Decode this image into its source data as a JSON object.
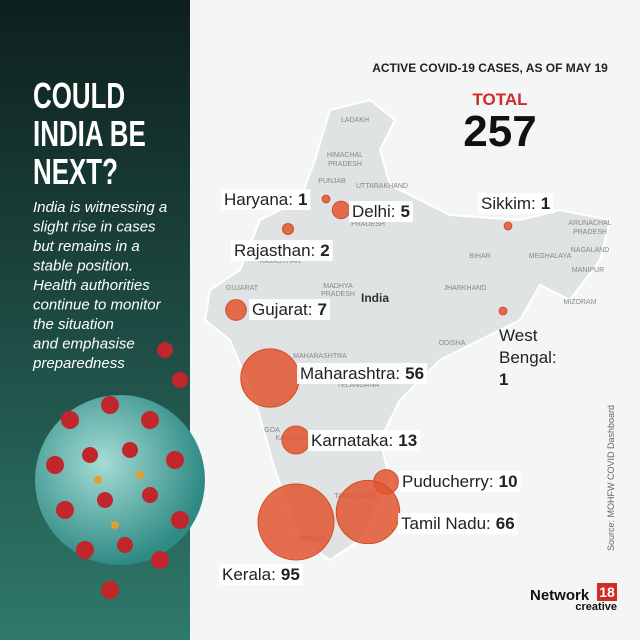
{
  "header": {
    "title_lines": [
      "COULD",
      "INDIA BE",
      "NEXT?"
    ],
    "description_lines": [
      "India is witnessing a",
      "slight rise in cases",
      "but remains in a",
      "stable position.",
      "Health authorities",
      "continue to monitor",
      "the situation",
      "and emphasise",
      "preparedness"
    ],
    "subtitle": "ACTIVE COVID-19 CASES, AS OF MAY 19",
    "total_label": "TOTAL",
    "total": 257
  },
  "states": [
    {
      "label": "Haryana:",
      "value": 1
    },
    {
      "label": "Delhi:",
      "value": 5
    },
    {
      "label": "Rajasthan:",
      "value": 2
    },
    {
      "label": "Gujarat:",
      "value": 7
    },
    {
      "label": "Maharashtra:",
      "value": 56
    },
    {
      "label": "Karnataka:",
      "value": 13
    },
    {
      "label": "Puducherry:",
      "value": 10
    },
    {
      "label": "Tamil Nadu:",
      "value": 66
    },
    {
      "label": "Kerala:",
      "value": 95
    },
    {
      "label": "Sikkim:",
      "value": 1
    },
    {
      "label_lines": [
        "West",
        "Bengal:"
      ],
      "value": 1
    }
  ],
  "map_labels": [
    "LADAKH",
    "HIMACHAL",
    "PRADESH",
    "PUNJAB",
    "UTTARAKHAND",
    "PRADESH",
    "RAJASTHAN",
    "GUJARAT",
    "MADHYA",
    "PRADESH",
    "India",
    "BIHAR",
    "JHARKHAND",
    "ODISHA",
    "MAHARASHTRA",
    "TELANGANA",
    "GOA",
    "KARNATAKA",
    "TAMIL NADU",
    "KERALA",
    "ARUNACHAL",
    "PRADESH",
    "NAGALAND",
    "MEGHALAYA",
    "MANIPUR",
    "MIZORAM"
  ],
  "source": "Source: MOHFW COVID Dashboard",
  "logo": {
    "name": "Network",
    "number": "18",
    "tag": "creative"
  }
}
